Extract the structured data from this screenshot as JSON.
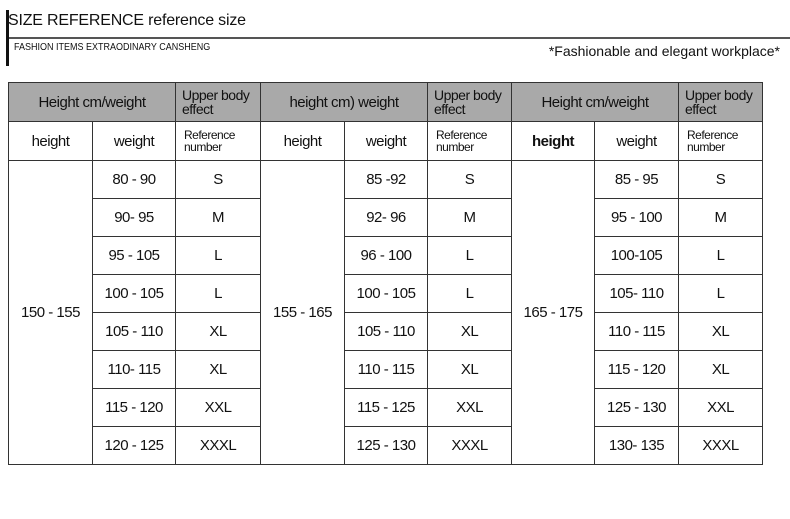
{
  "header": {
    "title": "SIZE REFERENCE reference size",
    "subtitle": "FASHION  ITEMS EXTRAODINARY  CANSHENG",
    "slogan": "*Fashionable and elegant workplace*"
  },
  "table": {
    "group_headers": [
      "Height cm/weight",
      "height cm) weight",
      "Height cm/weight"
    ],
    "effect_header": "Upper body effect",
    "sub_headers": {
      "height": "height",
      "weight": "weight",
      "reference": "Reference number"
    },
    "header_fill": "#a9a9a9",
    "groups": [
      {
        "height": "150 - 155",
        "rows": [
          [
            "80 - 90",
            "S"
          ],
          [
            "90- 95",
            "M"
          ],
          [
            "95 - 105",
            "L"
          ],
          [
            "100 - 105",
            "L"
          ],
          [
            "105 - 110",
            "XL"
          ],
          [
            "110- 115",
            "XL"
          ],
          [
            "115 - 120",
            "XXL"
          ],
          [
            "120 - 125",
            "XXXL"
          ]
        ]
      },
      {
        "height": "155 - 165",
        "rows": [
          [
            "85 -92",
            "S"
          ],
          [
            "92- 96",
            "M"
          ],
          [
            "96 - 100",
            "L"
          ],
          [
            "100 - 105",
            "L"
          ],
          [
            "105 - 110",
            "XL"
          ],
          [
            "110 - 115",
            "XL"
          ],
          [
            "115 - 125",
            "XXL"
          ],
          [
            "125 - 130",
            "XXXL"
          ]
        ]
      },
      {
        "height": "165 - 175",
        "rows": [
          [
            "85 - 95",
            "S"
          ],
          [
            "95 - 100",
            "M"
          ],
          [
            "100-105",
            "L"
          ],
          [
            "105- 110",
            "L"
          ],
          [
            "110 - 115",
            "XL"
          ],
          [
            "115 - 120",
            "XL"
          ],
          [
            "125 - 130",
            "XXL"
          ],
          [
            "130- 135",
            "XXXL"
          ]
        ]
      }
    ]
  }
}
